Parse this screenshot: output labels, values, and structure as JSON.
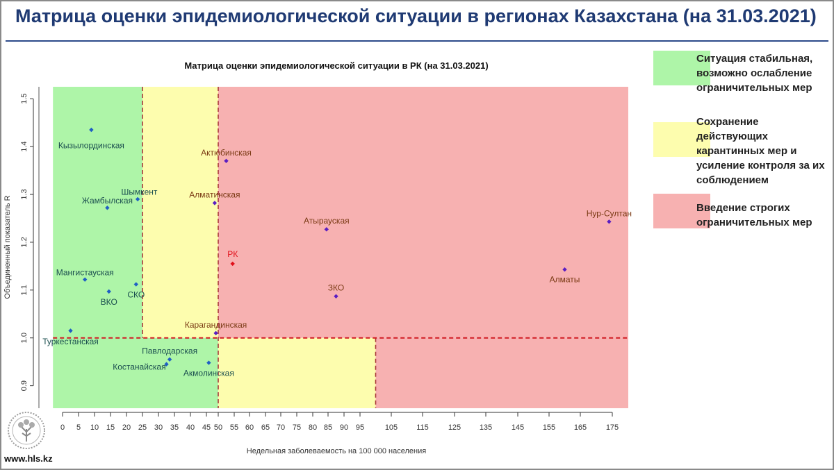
{
  "page": {
    "title": "Матрица оценки эпидемиологической ситуации в регионах Казахстана (на 31.03.2021)",
    "footer_url": "www.hls.kz"
  },
  "legend": [
    {
      "label": "Ситуация стабильная, возможно ослабление ограничительных мер",
      "color": "#aef5a8"
    },
    {
      "label": "Сохранение действующих карантинных мер и усиление контроля за их соблюдением",
      "color": "#fdfdae"
    },
    {
      "label": "Введение строгих ограничительных мер",
      "color": "#f7b1b1"
    }
  ],
  "chart_data": {
    "type": "scatter",
    "title": "Матрица оценки эпидемиологической ситуации в РК (на 31.03.2021)",
    "xlabel": "Недельная заболеваемость на 100 000 населения",
    "ylabel": "Объединенный показатель R",
    "xlim": [
      -3,
      180
    ],
    "ylim": [
      0.853,
      1.525
    ],
    "x_ticks": [
      0,
      5,
      10,
      15,
      20,
      25,
      30,
      35,
      40,
      45,
      50,
      55,
      60,
      65,
      70,
      75,
      80,
      85,
      90,
      95,
      105,
      115,
      125,
      135,
      145,
      155,
      165,
      175
    ],
    "y_ticks": [
      0.9,
      1.0,
      1.1,
      1.2,
      1.3,
      1.4,
      1.5
    ],
    "zones": [
      {
        "x": [
          -3,
          25
        ],
        "y": [
          1.0,
          1.525
        ],
        "color": "#aef5a8"
      },
      {
        "x": [
          -3,
          50
        ],
        "y": [
          0.853,
          1.0
        ],
        "color": "#aef5a8"
      },
      {
        "x": [
          25,
          50
        ],
        "y": [
          1.0,
          1.525
        ],
        "color": "#fdfdae"
      },
      {
        "x": [
          50,
          100
        ],
        "y": [
          0.853,
          1.0
        ],
        "color": "#fdfdae"
      },
      {
        "x": [
          50,
          180
        ],
        "y": [
          1.0,
          1.525
        ],
        "color": "#f7b1b1"
      },
      {
        "x": [
          100,
          180
        ],
        "y": [
          0.853,
          1.0
        ],
        "color": "#f7b1b1"
      }
    ],
    "thresholds": [
      {
        "axis": "x",
        "value": 25,
        "from": 1.0,
        "to": 1.525
      },
      {
        "axis": "x",
        "value": 50,
        "from": 0.853,
        "to": 1.525
      },
      {
        "axis": "x",
        "value": 100,
        "from": 0.853,
        "to": 1.0
      },
      {
        "axis": "y",
        "value": 1.0,
        "from": -3,
        "to": 180
      }
    ],
    "points": [
      {
        "label": "Кызылординская",
        "x": 9,
        "y": 1.435,
        "color": "#1f5fc4",
        "lx": 9,
        "ly": 1.402
      },
      {
        "label": "Шымкент",
        "x": 23.5,
        "y": 1.29,
        "color": "#1f5fc4",
        "lx": 24,
        "ly": 1.305
      },
      {
        "label": "Жамбылская",
        "x": 14,
        "y": 1.272,
        "color": "#1f5fc4",
        "lx": 14,
        "ly": 1.287
      },
      {
        "label": "Мангистауская",
        "x": 7,
        "y": 1.122,
        "color": "#1f5fc4",
        "lx": 7,
        "ly": 1.137
      },
      {
        "label": "ВКО",
        "x": 14.5,
        "y": 1.097,
        "color": "#1f5fc4",
        "lx": 14.5,
        "ly": 1.075
      },
      {
        "label": "СКО",
        "x": 23,
        "y": 1.112,
        "color": "#1f5fc4",
        "lx": 23,
        "ly": 1.09
      },
      {
        "label": "Туркестанская",
        "x": 2.5,
        "y": 1.015,
        "color": "#1f5fc4",
        "lx": 2.5,
        "ly": 0.992
      },
      {
        "label": "Павлодарская",
        "x": 33.5,
        "y": 0.955,
        "color": "#1f5fc4",
        "lx": 33.5,
        "ly": 0.973
      },
      {
        "label": "Костанайская",
        "x": 32.5,
        "y": 0.945,
        "color": "#1f5fc4",
        "lx": 24,
        "ly": 0.939
      },
      {
        "label": "Акмолинская",
        "x": 46,
        "y": 0.948,
        "color": "#1f5fc4",
        "lx": 46,
        "ly": 0.926
      },
      {
        "label": "Актюбинская",
        "x": 52.5,
        "y": 1.37,
        "color": "#5a1ec2",
        "lx": 52.5,
        "ly": 1.387
      },
      {
        "label": "Алматинская",
        "x": 48.5,
        "y": 1.282,
        "color": "#5a1ec2",
        "lx": 48.5,
        "ly": 1.299
      },
      {
        "label": "Карагандинская",
        "x": 49,
        "y": 1.01,
        "color": "#5a1ec2",
        "lx": 49,
        "ly": 1.027
      },
      {
        "label": "РК",
        "x": 54.5,
        "y": 1.155,
        "color": "#e0101a",
        "lx": 54.5,
        "ly": 1.175
      },
      {
        "label": "Атырауская",
        "x": 84.5,
        "y": 1.227,
        "color": "#5a1ec2",
        "lx": 84.5,
        "ly": 1.245
      },
      {
        "label": "ЗКО",
        "x": 87.5,
        "y": 1.087,
        "color": "#5a1ec2",
        "lx": 87.5,
        "ly": 1.105
      },
      {
        "label": "Алматы",
        "x": 160,
        "y": 1.143,
        "color": "#5a1ec2",
        "lx": 160,
        "ly": 1.122
      },
      {
        "label": "Нур-Султан",
        "x": 174,
        "y": 1.243,
        "color": "#5a1ec2",
        "lx": 174,
        "ly": 1.26
      }
    ]
  }
}
